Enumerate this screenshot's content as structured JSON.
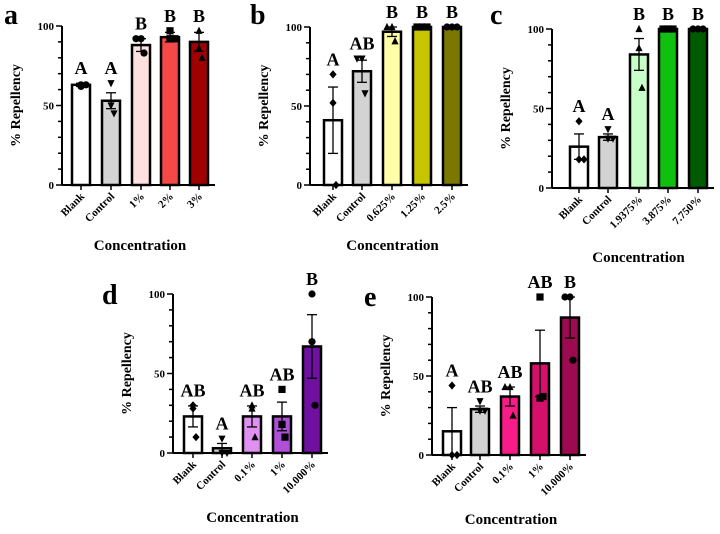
{
  "chart_data": [
    {
      "type": "bar",
      "panel_label": "a",
      "ylabel": "% Repellency",
      "xlabel": "Concentration",
      "ylim": [
        0,
        100
      ],
      "yticks": [
        0,
        50,
        100
      ],
      "categories": [
        "Blank",
        "Control",
        "1%",
        "2%",
        "3%"
      ],
      "values": [
        63,
        53,
        88,
        93,
        90
      ],
      "errors": [
        1,
        5,
        4,
        3,
        6
      ],
      "points": [
        [
          62,
          63,
          63
        ],
        [
          64,
          50,
          45
        ],
        [
          92,
          92,
          83
        ],
        [
          97,
          92,
          92
        ],
        [
          97,
          86,
          80
        ]
      ],
      "markers": [
        "circle",
        "triangle-down",
        "circle",
        "square",
        "triangle-up"
      ],
      "letters": [
        "A",
        "A",
        "B",
        "B",
        "B"
      ],
      "colors": [
        "#ffffff",
        "#d3d3d3",
        "#ffe0e0",
        "#f54848",
        "#a00000"
      ]
    },
    {
      "type": "bar",
      "panel_label": "b",
      "ylabel": "% Repellency",
      "xlabel": "Concentration",
      "ylim": [
        0,
        100
      ],
      "yticks": [
        0,
        50,
        100
      ],
      "categories": [
        "Blank",
        "Control",
        "0.625%",
        "1.25%",
        "2.5%"
      ],
      "values": [
        41,
        72,
        97,
        100,
        100
      ],
      "errors": [
        21,
        7,
        3,
        0,
        0
      ],
      "points": [
        [
          70,
          52,
          0
        ],
        [
          80,
          80,
          58
        ],
        [
          100,
          100,
          91
        ],
        [
          100,
          100,
          100
        ],
        [
          100,
          100,
          100
        ]
      ],
      "markers": [
        "diamond",
        "triangle-down",
        "triangle-up",
        "square",
        "circle"
      ],
      "letters": [
        "A",
        "AB",
        "B",
        "B",
        "B"
      ],
      "colors": [
        "#ffffff",
        "#d3d3d3",
        "#ffffa8",
        "#c7c400",
        "#7a7800"
      ]
    },
    {
      "type": "bar",
      "panel_label": "c",
      "ylabel": "% Repellency",
      "xlabel": "Concentration",
      "ylim": [
        0,
        100
      ],
      "yticks": [
        0,
        50,
        100
      ],
      "categories": [
        "Blank",
        "Control",
        "1.9375%",
        "3.875%",
        "7.750%"
      ],
      "values": [
        26,
        32,
        84,
        100,
        100
      ],
      "errors": [
        8,
        2,
        10,
        0,
        0
      ],
      "points": [
        [
          42,
          18,
          18
        ],
        [
          37,
          31,
          31
        ],
        [
          100,
          88,
          63
        ],
        [
          100,
          100,
          100
        ],
        [
          100,
          100,
          100
        ]
      ],
      "markers": [
        "diamond",
        "triangle-down",
        "triangle-up",
        "square",
        "circle"
      ],
      "letters": [
        "A",
        "A",
        "B",
        "B",
        "B"
      ],
      "colors": [
        "#ffffff",
        "#d3d3d3",
        "#c8ffc8",
        "#10c010",
        "#005a00"
      ]
    },
    {
      "type": "bar",
      "panel_label": "d",
      "ylabel": "% Repellency",
      "xlabel": "Concentration",
      "ylim": [
        0,
        100
      ],
      "yticks": [
        0,
        50,
        100
      ],
      "categories": [
        "Blank",
        "Control",
        "0.1%",
        "1%",
        "10.000%"
      ],
      "values": [
        23,
        3,
        23,
        23,
        67
      ],
      "errors": [
        6.6,
        3,
        6.6,
        9,
        20
      ],
      "points": [
        [
          30,
          28,
          10
        ],
        [
          9,
          0,
          0
        ],
        [
          30,
          28,
          10
        ],
        [
          40,
          18,
          10
        ],
        [
          100,
          70,
          30
        ]
      ],
      "markers": [
        "diamond",
        "triangle-down",
        "triangle-up",
        "square",
        "circle"
      ],
      "letters": [
        "AB",
        "A",
        "AB",
        "AB",
        "B"
      ],
      "colors": [
        "#ffffff",
        "#d3d3d3",
        "#e090f0",
        "#b050d8",
        "#7010a0"
      ]
    },
    {
      "type": "bar",
      "panel_label": "e",
      "ylabel": "% Repellency",
      "xlabel": "Concentration",
      "ylim": [
        0,
        100
      ],
      "yticks": [
        0,
        50,
        100
      ],
      "categories": [
        "Blank",
        "Control",
        "0.1%",
        "1%",
        "10.000%"
      ],
      "values": [
        15,
        29,
        37,
        58,
        87
      ],
      "errors": [
        15,
        2,
        6,
        21,
        13
      ],
      "points": [
        [
          44,
          0,
          0
        ],
        [
          34,
          28,
          28
        ],
        [
          43,
          43,
          25
        ],
        [
          100,
          36,
          37
        ],
        [
          100,
          100,
          60
        ]
      ],
      "markers": [
        "diamond",
        "triangle-down",
        "triangle-up",
        "square",
        "circle"
      ],
      "letters": [
        "A",
        "AB",
        "AB",
        "AB",
        "B"
      ],
      "colors": [
        "#ffffff",
        "#d3d3d3",
        "#f81c88",
        "#d4116a",
        "#9c0a50"
      ]
    }
  ]
}
